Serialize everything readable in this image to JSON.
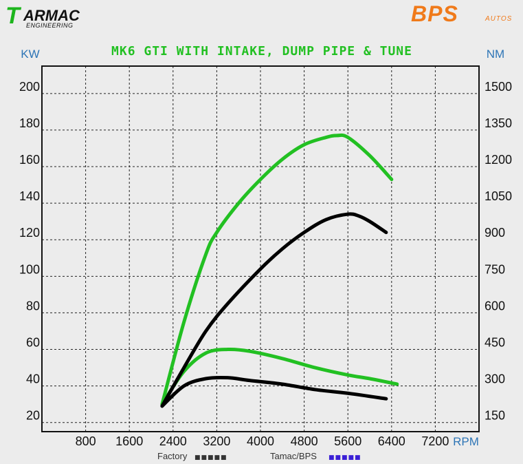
{
  "header": {
    "left_logo_mark": "T",
    "left_logo_word": "ARMAC",
    "left_logo_sub": "ENGINEERING",
    "right_logo_word": "BPS",
    "right_logo_sub": "AUTOS"
  },
  "colors": {
    "tuned": "#22c022",
    "factory": "#000000",
    "title": "#22c022",
    "axis_unit": "#2e75b6",
    "logo_orange": "#f07a1a"
  },
  "chart_data": {
    "type": "line",
    "title": "MK6 GTI WITH INTAKE, DUMP PIPE & TUNE",
    "xlabel": "RPM",
    "ylabel_left": "KW",
    "ylabel_right": "NM",
    "xlim": [
      0,
      8000
    ],
    "ylim_left": [
      15,
      215
    ],
    "ylim_right": [
      112.5,
      1612.5
    ],
    "x_ticks": [
      800,
      1600,
      2400,
      3200,
      4000,
      4800,
      5600,
      6400,
      7200
    ],
    "y_ticks_left": [
      20,
      40,
      60,
      80,
      100,
      120,
      140,
      160,
      180,
      200
    ],
    "y_ticks_right": [
      150,
      300,
      450,
      600,
      750,
      900,
      1050,
      1200,
      1350,
      1500
    ],
    "grid": true,
    "legend": [
      {
        "label": "Factory",
        "marker": "■■■■■",
        "color": "#333333"
      },
      {
        "label": "Tamac/BPS",
        "marker": "■■■■■",
        "color": "#3a1fd6"
      }
    ],
    "series": [
      {
        "group": "tuned",
        "measure": "power",
        "axis": "left",
        "color": "#22c022",
        "x": [
          2200,
          2600,
          3000,
          3200,
          3600,
          4000,
          4400,
          4800,
          5200,
          5400,
          5600,
          6000,
          6400
        ],
        "y": [
          30,
          75,
          112,
          124,
          140,
          153,
          164,
          172,
          176,
          177,
          176,
          166,
          153
        ]
      },
      {
        "group": "tuned",
        "measure": "torque",
        "axis": "left",
        "color": "#22c022",
        "x": [
          2200,
          2600,
          3000,
          3400,
          3800,
          4400,
          5000,
          5600,
          6000,
          6500
        ],
        "y": [
          30,
          48,
          58,
          60,
          59,
          55,
          50,
          46,
          44,
          41
        ]
      },
      {
        "group": "factory",
        "measure": "power",
        "axis": "left",
        "color": "#000000",
        "x": [
          2200,
          2600,
          3000,
          3400,
          4000,
          4400,
          4800,
          5200,
          5600,
          5800,
          6000,
          6300
        ],
        "y": [
          29,
          50,
          70,
          85,
          104,
          115,
          124,
          131,
          134,
          133,
          130,
          124
        ]
      },
      {
        "group": "factory",
        "measure": "torque",
        "axis": "left",
        "color": "#000000",
        "x": [
          2200,
          2600,
          3000,
          3400,
          3800,
          4400,
          5000,
          5600,
          6300
        ],
        "y": [
          29,
          40,
          44,
          44.5,
          43,
          41,
          38,
          36,
          33
        ]
      }
    ]
  }
}
